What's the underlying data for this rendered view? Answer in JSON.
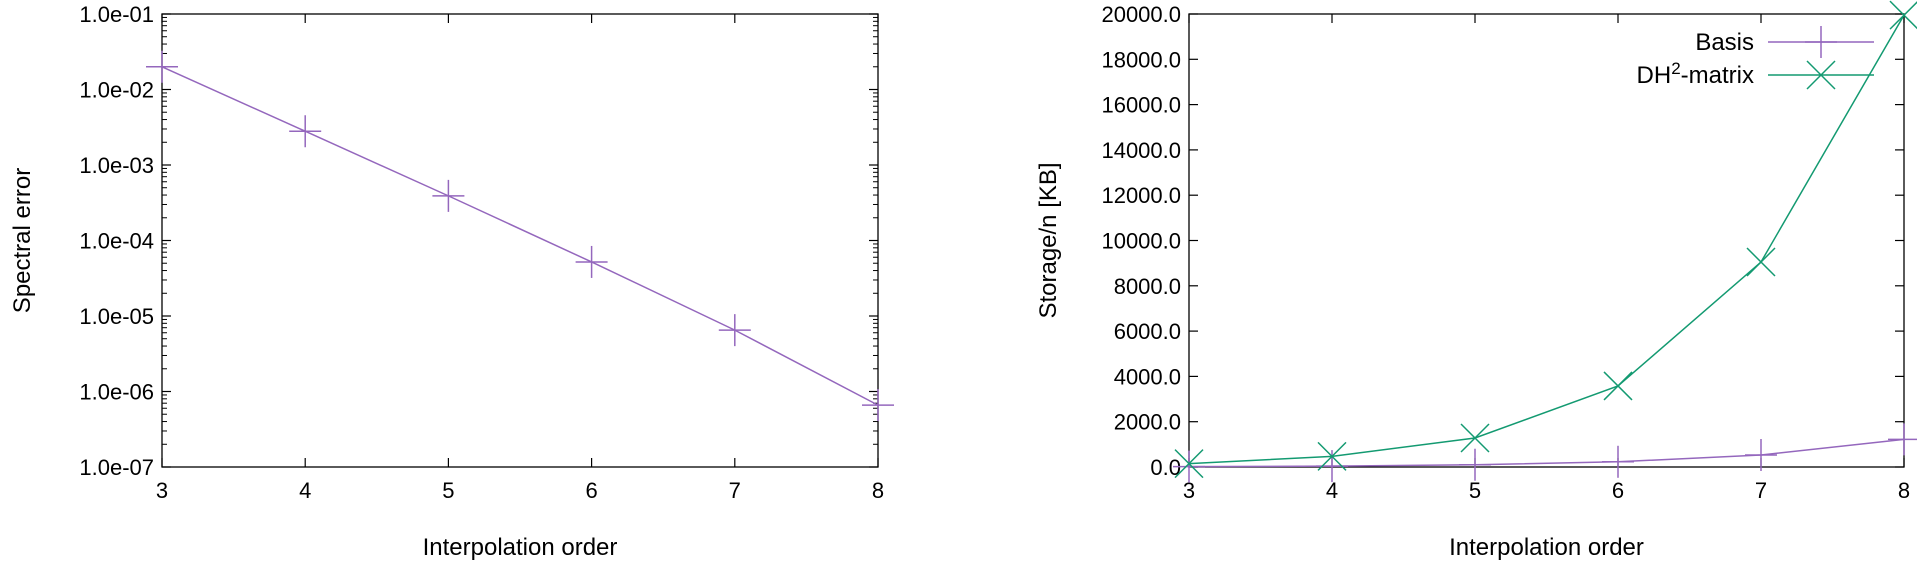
{
  "chart_data": [
    {
      "type": "line",
      "xlabel": "Interpolation order",
      "ylabel": "Spectral error",
      "yscale": "log",
      "xlim": [
        3,
        8
      ],
      "ylim": [
        1e-07,
        0.1
      ],
      "grid": false,
      "x_ticks": [
        "3",
        "4",
        "5",
        "6",
        "7",
        "8"
      ],
      "y_ticks": [
        "1.0e-01",
        "1.0e-02",
        "1.0e-03",
        "1.0e-04",
        "1.0e-05",
        "1.0e-06",
        "1.0e-07"
      ],
      "x": [
        3,
        4,
        5,
        6,
        7,
        8
      ],
      "series": [
        {
          "color": "#9467bd",
          "marker": "plus",
          "values": [
            0.02,
            0.0028,
            0.00039,
            5.2e-05,
            6.5e-06,
            6.6e-07
          ]
        }
      ]
    },
    {
      "type": "line",
      "xlabel": "Interpolation order",
      "ylabel": "Storage/n [KB]",
      "xlim": [
        3,
        8
      ],
      "ylim": [
        0,
        20000
      ],
      "grid": false,
      "legend": "top-right",
      "x_ticks": [
        "3",
        "4",
        "5",
        "6",
        "7",
        "8"
      ],
      "y_ticks": [
        "0.0",
        "2000.0",
        "4000.0",
        "6000.0",
        "8000.0",
        "10000.0",
        "12000.0",
        "14000.0",
        "16000.0",
        "18000.0",
        "20000.0"
      ],
      "x": [
        3,
        4,
        5,
        6,
        7,
        8
      ],
      "series": [
        {
          "name": "Basis",
          "color": "#9467bd",
          "marker": "plus",
          "values": [
            15,
            40,
            100,
            230,
            530,
            1220
          ]
        },
        {
          "name": "DH",
          "name_sup": "2",
          "name_suffix": "-matrix",
          "color": "#139a71",
          "marker": "cross",
          "values": [
            150,
            470,
            1280,
            3580,
            9050,
            19950
          ]
        }
      ]
    }
  ]
}
